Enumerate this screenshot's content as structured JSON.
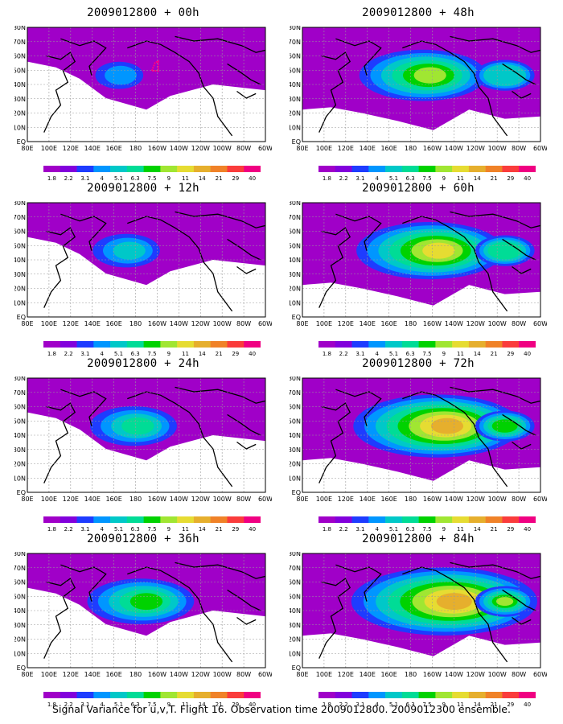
{
  "panels": [
    {
      "title": "2009012800 + 00h",
      "level": 0
    },
    {
      "title": "2009012800 + 12h",
      "level": 1
    },
    {
      "title": "2009012800 + 24h",
      "level": 2
    },
    {
      "title": "2009012800 + 36h",
      "level": 3
    },
    {
      "title": "2009012800 + 48h",
      "level": 4
    },
    {
      "title": "2009012800 + 60h",
      "level": 5
    },
    {
      "title": "2009012800 + 72h",
      "level": 6
    },
    {
      "title": "2009012800 + 84h",
      "level": 7
    }
  ],
  "x_ticks": [
    "80E",
    "100E",
    "120E",
    "140E",
    "160E",
    "180",
    "160W",
    "140W",
    "120W",
    "100W",
    "80W",
    "60W"
  ],
  "y_ticks": [
    "EQ",
    "10N",
    "20N",
    "30N",
    "40N",
    "50N",
    "60N",
    "70N",
    "80N"
  ],
  "colorbar": {
    "labels": [
      "1.8",
      "2.2",
      "3.1",
      "4",
      "5.1",
      "6.3",
      "7.5",
      "9",
      "11",
      "14",
      "21",
      "29",
      "40"
    ],
    "colors": [
      "#a000c8",
      "#8200dc",
      "#1e3cff",
      "#0096ff",
      "#00c8c8",
      "#00dc96",
      "#00d200",
      "#a0e632",
      "#e6dc32",
      "#e6af2d",
      "#f08228",
      "#fa3c3c",
      "#f00082"
    ]
  },
  "caption": "Signal Variance for u,v,T. Flight 16. Observation time 2009012800. 2009012300 ensemble.",
  "colors": {
    "coast": "#000000",
    "grid": "#9a9a9a",
    "marker": "#ff0080"
  }
}
